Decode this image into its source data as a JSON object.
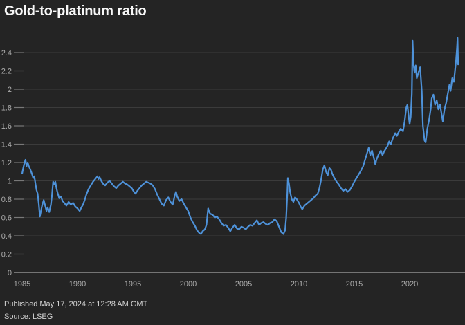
{
  "page": {
    "title": "Gold-to-platinum ratio",
    "published": "Published May 17, 2024 at 12:28 AM GMT",
    "source": "Source: LSEG"
  },
  "colors": {
    "background": "#242424",
    "line": "#4e92d9",
    "gridline": "#3b3b3b",
    "tick_dash": "#787878",
    "zero_axis": "#8f8f8f",
    "axis_text": "#ababab",
    "title_text": "#f7f7f7",
    "footer_text": "#d2d2d2"
  },
  "chart_data": {
    "type": "line",
    "title": "Gold-to-platinum ratio",
    "xlabel": "",
    "ylabel": "",
    "grid": true,
    "legend": "none",
    "x_axis": {
      "min": 1985,
      "max": 2025.0,
      "tick_years": [
        1985,
        1990,
        1995,
        2000,
        2005,
        2010,
        2015,
        2020
      ],
      "tick_labels": [
        "1985",
        "1990",
        "1995",
        "2000",
        "2005",
        "2010",
        "2015",
        "2020"
      ]
    },
    "y_axis": {
      "min": 0,
      "max": 2.4,
      "step": 0.2,
      "tick_labels": [
        "0",
        "0.2",
        "0.4",
        "0.6",
        "0.8",
        "1",
        "1.2",
        "1.4",
        "1.6",
        "1.8",
        "2",
        "2.2",
        "2.4"
      ]
    },
    "series": [
      {
        "name": "Gold-to-platinum ratio",
        "points": [
          [
            1985.0,
            1.08
          ],
          [
            1985.1,
            1.14
          ],
          [
            1985.2,
            1.19
          ],
          [
            1985.3,
            1.23
          ],
          [
            1985.4,
            1.16
          ],
          [
            1985.5,
            1.2
          ],
          [
            1985.6,
            1.16
          ],
          [
            1985.75,
            1.12
          ],
          [
            1985.9,
            1.07
          ],
          [
            1986.0,
            1.03
          ],
          [
            1986.1,
            1.05
          ],
          [
            1986.2,
            0.97
          ],
          [
            1986.3,
            0.9
          ],
          [
            1986.4,
            0.86
          ],
          [
            1986.5,
            0.75
          ],
          [
            1986.6,
            0.61
          ],
          [
            1986.7,
            0.67
          ],
          [
            1986.8,
            0.73
          ],
          [
            1986.95,
            0.79
          ],
          [
            1987.1,
            0.72
          ],
          [
            1987.2,
            0.67
          ],
          [
            1987.3,
            0.71
          ],
          [
            1987.45,
            0.66
          ],
          [
            1987.6,
            0.74
          ],
          [
            1987.7,
            0.85
          ],
          [
            1987.8,
            0.99
          ],
          [
            1987.9,
            0.96
          ],
          [
            1988.0,
            0.99
          ],
          [
            1988.1,
            0.92
          ],
          [
            1988.2,
            0.87
          ],
          [
            1988.35,
            0.81
          ],
          [
            1988.5,
            0.83
          ],
          [
            1988.65,
            0.78
          ],
          [
            1988.8,
            0.76
          ],
          [
            1989.0,
            0.73
          ],
          [
            1989.2,
            0.77
          ],
          [
            1989.4,
            0.74
          ],
          [
            1989.6,
            0.76
          ],
          [
            1989.8,
            0.72
          ],
          [
            1990.0,
            0.7
          ],
          [
            1990.2,
            0.67
          ],
          [
            1990.35,
            0.71
          ],
          [
            1990.5,
            0.74
          ],
          [
            1990.65,
            0.79
          ],
          [
            1990.8,
            0.85
          ],
          [
            1991.0,
            0.91
          ],
          [
            1991.2,
            0.95
          ],
          [
            1991.4,
            0.99
          ],
          [
            1991.6,
            1.02
          ],
          [
            1991.8,
            1.05
          ],
          [
            1991.9,
            1.02
          ],
          [
            1992.0,
            1.04
          ],
          [
            1992.15,
            1.0
          ],
          [
            1992.3,
            0.97
          ],
          [
            1992.5,
            0.95
          ],
          [
            1992.7,
            0.98
          ],
          [
            1992.9,
            1.0
          ],
          [
            1993.1,
            0.97
          ],
          [
            1993.3,
            0.94
          ],
          [
            1993.5,
            0.92
          ],
          [
            1993.7,
            0.95
          ],
          [
            1993.9,
            0.97
          ],
          [
            1994.1,
            0.99
          ],
          [
            1994.3,
            0.97
          ],
          [
            1994.5,
            0.96
          ],
          [
            1994.7,
            0.94
          ],
          [
            1994.9,
            0.92
          ],
          [
            1995.1,
            0.88
          ],
          [
            1995.25,
            0.86
          ],
          [
            1995.4,
            0.89
          ],
          [
            1995.6,
            0.92
          ],
          [
            1995.8,
            0.95
          ],
          [
            1996.0,
            0.97
          ],
          [
            1996.2,
            0.99
          ],
          [
            1996.4,
            0.98
          ],
          [
            1996.6,
            0.97
          ],
          [
            1996.8,
            0.95
          ],
          [
            1997.0,
            0.91
          ],
          [
            1997.2,
            0.85
          ],
          [
            1997.4,
            0.8
          ],
          [
            1997.6,
            0.75
          ],
          [
            1997.8,
            0.73
          ],
          [
            1998.0,
            0.79
          ],
          [
            1998.2,
            0.82
          ],
          [
            1998.4,
            0.77
          ],
          [
            1998.6,
            0.74
          ],
          [
            1998.8,
            0.85
          ],
          [
            1998.9,
            0.88
          ],
          [
            1999.0,
            0.83
          ],
          [
            1999.2,
            0.78
          ],
          [
            1999.4,
            0.8
          ],
          [
            1999.6,
            0.75
          ],
          [
            1999.8,
            0.71
          ],
          [
            2000.0,
            0.67
          ],
          [
            2000.2,
            0.6
          ],
          [
            2000.4,
            0.55
          ],
          [
            2000.6,
            0.51
          ],
          [
            2000.8,
            0.46
          ],
          [
            2001.0,
            0.43
          ],
          [
            2001.15,
            0.42
          ],
          [
            2001.3,
            0.45
          ],
          [
            2001.5,
            0.47
          ],
          [
            2001.65,
            0.52
          ],
          [
            2001.8,
            0.7
          ],
          [
            2001.9,
            0.66
          ],
          [
            2002.0,
            0.64
          ],
          [
            2002.2,
            0.63
          ],
          [
            2002.4,
            0.6
          ],
          [
            2002.6,
            0.61
          ],
          [
            2002.8,
            0.58
          ],
          [
            2003.0,
            0.54
          ],
          [
            2003.2,
            0.51
          ],
          [
            2003.4,
            0.52
          ],
          [
            2003.6,
            0.49
          ],
          [
            2003.8,
            0.45
          ],
          [
            2004.0,
            0.49
          ],
          [
            2004.2,
            0.52
          ],
          [
            2004.4,
            0.48
          ],
          [
            2004.6,
            0.47
          ],
          [
            2004.8,
            0.5
          ],
          [
            2005.0,
            0.49
          ],
          [
            2005.2,
            0.47
          ],
          [
            2005.4,
            0.5
          ],
          [
            2005.6,
            0.52
          ],
          [
            2005.8,
            0.51
          ],
          [
            2006.0,
            0.54
          ],
          [
            2006.2,
            0.57
          ],
          [
            2006.4,
            0.52
          ],
          [
            2006.6,
            0.54
          ],
          [
            2006.8,
            0.55
          ],
          [
            2007.0,
            0.53
          ],
          [
            2007.2,
            0.52
          ],
          [
            2007.4,
            0.54
          ],
          [
            2007.6,
            0.55
          ],
          [
            2007.8,
            0.58
          ],
          [
            2008.0,
            0.56
          ],
          [
            2008.2,
            0.5
          ],
          [
            2008.4,
            0.44
          ],
          [
            2008.6,
            0.42
          ],
          [
            2008.75,
            0.46
          ],
          [
            2008.85,
            0.6
          ],
          [
            2008.95,
            0.86
          ],
          [
            2009.0,
            1.03
          ],
          [
            2009.1,
            0.97
          ],
          [
            2009.2,
            0.88
          ],
          [
            2009.35,
            0.8
          ],
          [
            2009.5,
            0.77
          ],
          [
            2009.65,
            0.82
          ],
          [
            2009.8,
            0.8
          ],
          [
            2010.0,
            0.76
          ],
          [
            2010.15,
            0.72
          ],
          [
            2010.3,
            0.69
          ],
          [
            2010.5,
            0.73
          ],
          [
            2010.7,
            0.75
          ],
          [
            2010.9,
            0.77
          ],
          [
            2011.1,
            0.79
          ],
          [
            2011.3,
            0.81
          ],
          [
            2011.5,
            0.84
          ],
          [
            2011.7,
            0.86
          ],
          [
            2011.85,
            0.92
          ],
          [
            2012.0,
            1.01
          ],
          [
            2012.15,
            1.12
          ],
          [
            2012.3,
            1.17
          ],
          [
            2012.45,
            1.1
          ],
          [
            2012.6,
            1.06
          ],
          [
            2012.75,
            1.14
          ],
          [
            2012.9,
            1.12
          ],
          [
            2013.0,
            1.08
          ],
          [
            2013.2,
            1.03
          ],
          [
            2013.4,
            0.99
          ],
          [
            2013.6,
            0.96
          ],
          [
            2013.8,
            0.92
          ],
          [
            2014.0,
            0.89
          ],
          [
            2014.2,
            0.91
          ],
          [
            2014.4,
            0.88
          ],
          [
            2014.6,
            0.9
          ],
          [
            2014.8,
            0.94
          ],
          [
            2015.0,
            0.99
          ],
          [
            2015.2,
            1.03
          ],
          [
            2015.4,
            1.07
          ],
          [
            2015.6,
            1.11
          ],
          [
            2015.8,
            1.16
          ],
          [
            2016.0,
            1.24
          ],
          [
            2016.15,
            1.3
          ],
          [
            2016.3,
            1.36
          ],
          [
            2016.45,
            1.28
          ],
          [
            2016.6,
            1.33
          ],
          [
            2016.75,
            1.26
          ],
          [
            2016.9,
            1.18
          ],
          [
            2017.0,
            1.23
          ],
          [
            2017.2,
            1.29
          ],
          [
            2017.4,
            1.33
          ],
          [
            2017.55,
            1.28
          ],
          [
            2017.7,
            1.32
          ],
          [
            2017.85,
            1.35
          ],
          [
            2018.0,
            1.38
          ],
          [
            2018.15,
            1.43
          ],
          [
            2018.3,
            1.4
          ],
          [
            2018.5,
            1.47
          ],
          [
            2018.7,
            1.52
          ],
          [
            2018.85,
            1.49
          ],
          [
            2019.0,
            1.53
          ],
          [
            2019.2,
            1.57
          ],
          [
            2019.4,
            1.54
          ],
          [
            2019.55,
            1.65
          ],
          [
            2019.7,
            1.8
          ],
          [
            2019.8,
            1.83
          ],
          [
            2019.9,
            1.72
          ],
          [
            2020.0,
            1.62
          ],
          [
            2020.1,
            1.7
          ],
          [
            2020.2,
            1.95
          ],
          [
            2020.27,
            2.53
          ],
          [
            2020.35,
            2.28
          ],
          [
            2020.45,
            2.18
          ],
          [
            2020.55,
            2.26
          ],
          [
            2020.65,
            2.12
          ],
          [
            2020.8,
            2.18
          ],
          [
            2020.95,
            2.24
          ],
          [
            2021.1,
            1.98
          ],
          [
            2021.2,
            1.6
          ],
          [
            2021.35,
            1.44
          ],
          [
            2021.45,
            1.42
          ],
          [
            2021.6,
            1.57
          ],
          [
            2021.75,
            1.66
          ],
          [
            2021.9,
            1.78
          ],
          [
            2022.0,
            1.9
          ],
          [
            2022.15,
            1.94
          ],
          [
            2022.3,
            1.83
          ],
          [
            2022.45,
            1.88
          ],
          [
            2022.6,
            1.78
          ],
          [
            2022.75,
            1.83
          ],
          [
            2022.9,
            1.72
          ],
          [
            2023.0,
            1.65
          ],
          [
            2023.15,
            1.78
          ],
          [
            2023.3,
            1.85
          ],
          [
            2023.45,
            1.95
          ],
          [
            2023.6,
            2.05
          ],
          [
            2023.7,
            1.98
          ],
          [
            2023.85,
            2.12
          ],
          [
            2024.0,
            2.08
          ],
          [
            2024.1,
            2.2
          ],
          [
            2024.2,
            2.32
          ],
          [
            2024.28,
            2.45
          ],
          [
            2024.33,
            2.56
          ],
          [
            2024.38,
            2.27
          ]
        ]
      }
    ]
  }
}
